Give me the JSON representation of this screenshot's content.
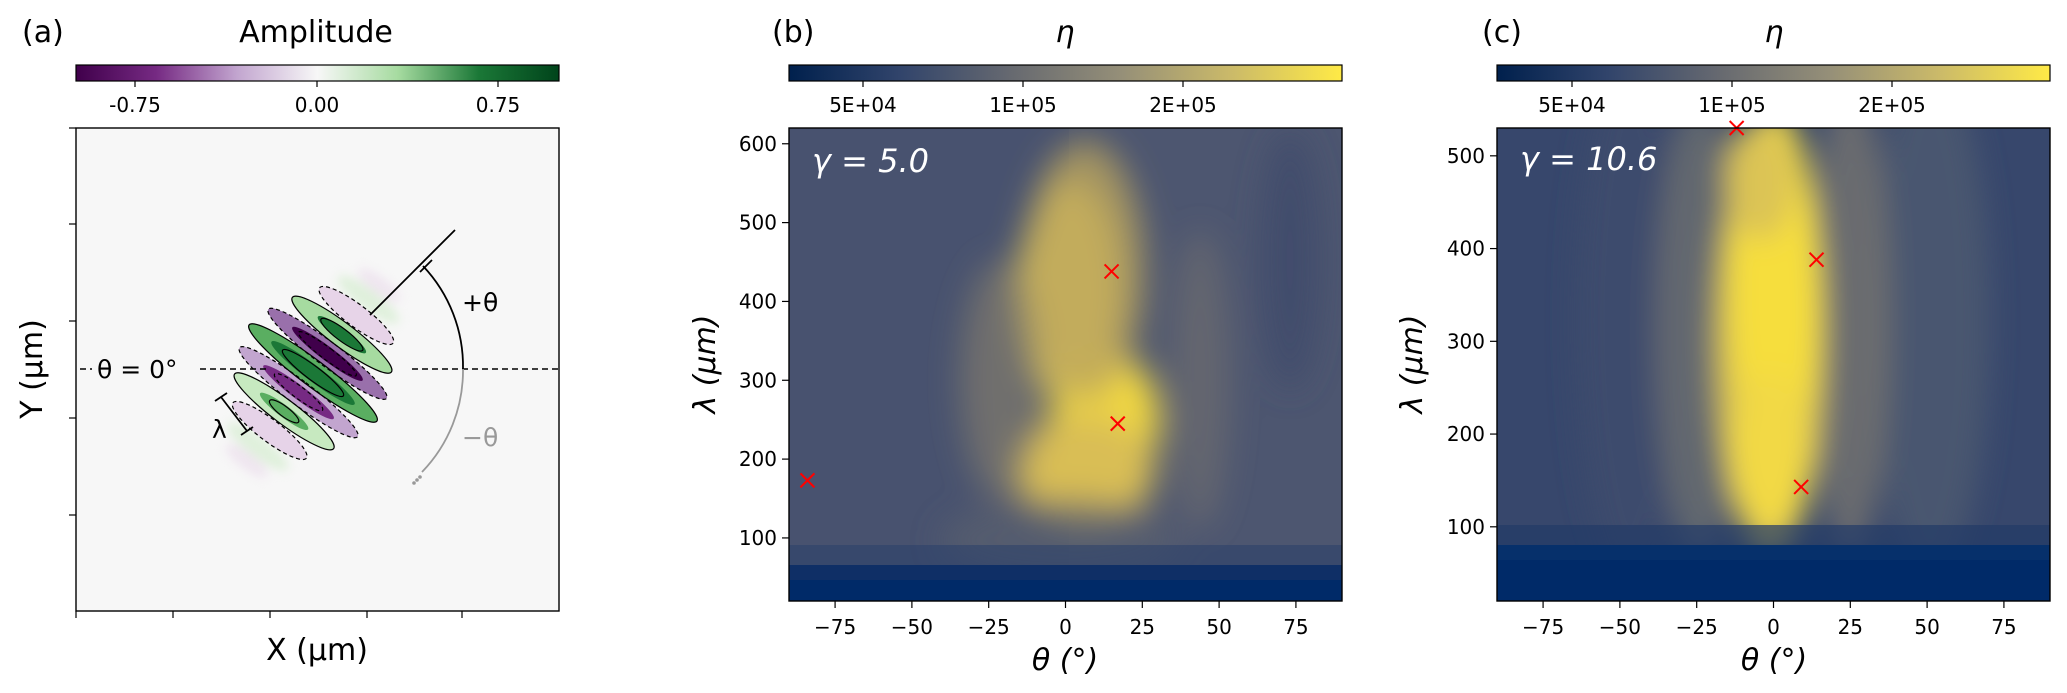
{
  "figure": {
    "panels": [
      {
        "id": "a",
        "panel_label": "(a)",
        "colorbar": {
          "title": "Amplitude",
          "ticks": [
            "-0.75",
            "0.00",
            "0.75"
          ],
          "colors": [
            "#40004b",
            "#762a83",
            "#c2a5cf",
            "#f7f7f7",
            "#a6dba0",
            "#1b7837",
            "#00441b"
          ]
        },
        "xlabel": "X (μm)",
        "ylabel": "Y (μm)",
        "annotations": {
          "theta_zero": "θ = 0°",
          "plus_theta": "+θ",
          "minus_theta": "−θ",
          "lambda": "λ"
        },
        "contours": {
          "solid": "positive",
          "dashed": "negative"
        }
      },
      {
        "id": "b",
        "panel_label": "(b)",
        "colorbar": {
          "title": "η",
          "ticks": [
            "5E+04",
            "1E+05",
            "2E+05"
          ],
          "colors": [
            "#00204d",
            "#31446b",
            "#666970",
            "#958f78",
            "#cbba69",
            "#ffea46"
          ]
        },
        "gamma_text": "γ = 5.0",
        "xlabel": "θ (°)",
        "ylabel": "λ (μm)",
        "xticks": [
          "−75",
          "−50",
          "−25",
          "0",
          "25",
          "50",
          "75"
        ],
        "yticks": [
          "100",
          "200",
          "300",
          "400",
          "500",
          "600"
        ],
        "marker_color": "#ff0000"
      },
      {
        "id": "c",
        "panel_label": "(c)",
        "colorbar": {
          "title": "η",
          "ticks": [
            "5E+04",
            "1E+05",
            "2E+05"
          ],
          "colors": [
            "#00204d",
            "#31446b",
            "#666970",
            "#958f78",
            "#cbba69",
            "#ffea46"
          ]
        },
        "gamma_text": "γ = 10.6",
        "xlabel": "θ (°)",
        "ylabel": "λ (μm)",
        "xticks": [
          "−75",
          "−50",
          "−25",
          "0",
          "25",
          "50",
          "75"
        ],
        "yticks": [
          "100",
          "200",
          "300",
          "400",
          "500"
        ],
        "marker_color": "#ff0000"
      }
    ]
  },
  "chart_data": [
    {
      "type": "heatmap",
      "title": "",
      "subtitle": "(a) Amplitude",
      "xlabel": "X (μm)",
      "ylabel": "Y (μm)",
      "colorbar_label": "Amplitude",
      "colorbar_ticks": [
        -0.75,
        0.0,
        0.75
      ],
      "colorbar_range": [
        -1,
        1
      ],
      "colormap": "PRGn",
      "grid": false
    },
    {
      "type": "heatmap",
      "title": "",
      "subtitle": "(b)",
      "annotation": "γ = 5.0",
      "xlabel": "θ (°)",
      "ylabel": "λ (μm)",
      "colorbar_label": "η",
      "colorbar_ticks": [
        "5E+04",
        "1E+05",
        "2E+05"
      ],
      "colormap": "cividis",
      "xlim": [
        -90,
        90
      ],
      "ylim": [
        20,
        620
      ],
      "grid": false,
      "markers": [
        {
          "x": -84,
          "y": 173
        },
        {
          "x": 15,
          "y": 438
        },
        {
          "x": 17,
          "y": 245
        }
      ]
    },
    {
      "type": "heatmap",
      "title": "",
      "subtitle": "(c)",
      "annotation": "γ = 10.6",
      "xlabel": "θ (°)",
      "ylabel": "λ (μm)",
      "colorbar_label": "η",
      "colorbar_ticks": [
        "5E+04",
        "1E+05",
        "2E+05"
      ],
      "colormap": "cividis",
      "xlim": [
        -90,
        90
      ],
      "ylim": [
        20,
        530
      ],
      "grid": false,
      "markers": [
        {
          "x": -12,
          "y": 530
        },
        {
          "x": 14,
          "y": 388
        },
        {
          "x": 9,
          "y": 143
        }
      ]
    }
  ]
}
